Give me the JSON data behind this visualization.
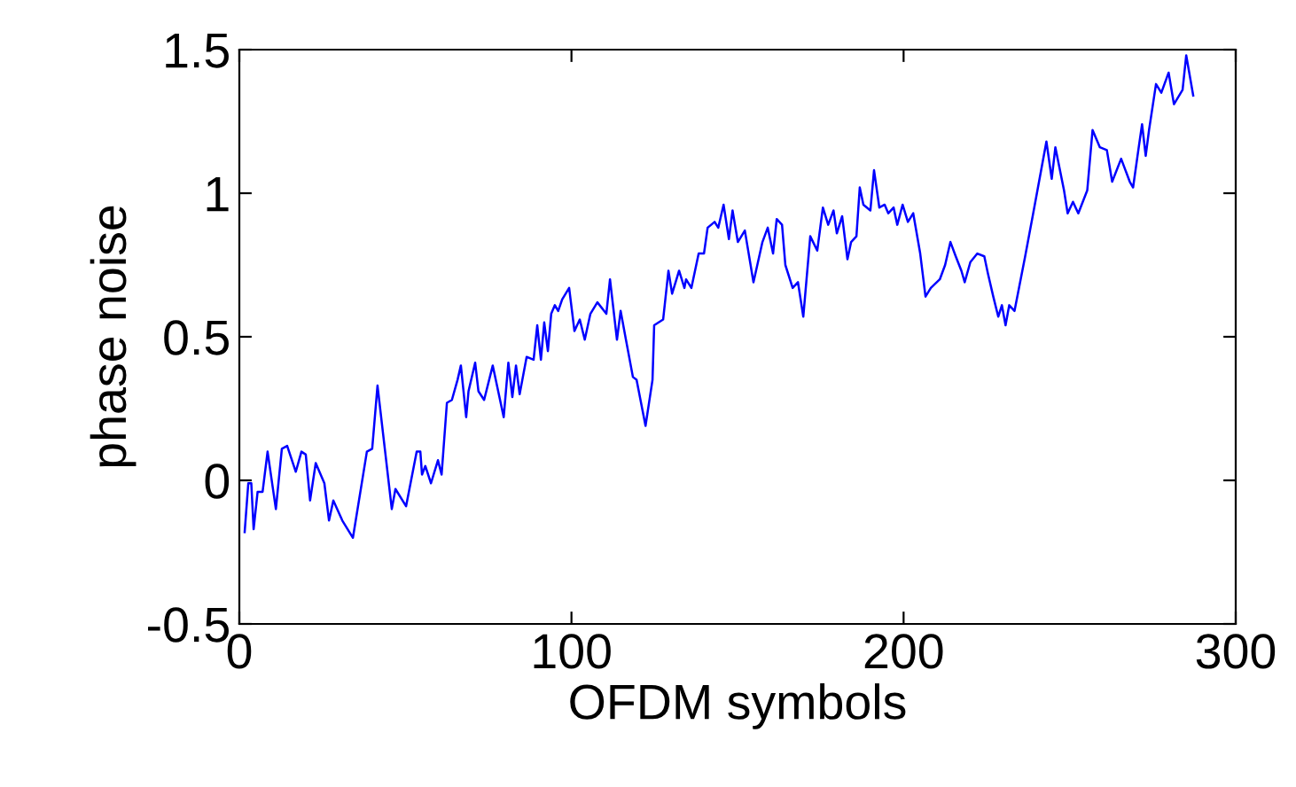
{
  "chart_data": {
    "type": "line",
    "xlabel": "OFDM symbols",
    "ylabel": "phase noise",
    "xlim": [
      0,
      300
    ],
    "xticks": [
      0,
      100,
      200,
      300
    ],
    "ylim": [
      -0.5,
      1.5
    ],
    "yticks": [
      -0.5,
      0,
      0.5,
      1,
      1.5
    ],
    "grid": false,
    "series": [
      {
        "color": "#0000ff",
        "x": [
          1.6,
          2.7,
          3.6,
          4.3,
          5.5,
          7,
          8.5,
          11,
          12.8,
          14.4,
          17,
          18.7,
          20,
          21.3,
          23,
          25.6,
          27,
          28.3,
          31,
          34.2,
          38.4,
          40,
          41.6,
          45.9,
          47,
          50.2,
          53.4,
          54.5,
          55,
          56,
          57.7,
          59.8,
          60.9,
          62.5,
          64,
          65.7,
          66.7,
          68.3,
          69,
          71,
          72,
          73.7,
          76.3,
          79.6,
          81,
          82.2,
          83.3,
          84.4,
          86.5,
          88.6,
          89.7,
          90.8,
          91.8,
          92.9,
          93.9,
          95,
          96,
          97.2,
          99.3,
          100.9,
          102.5,
          104,
          105.7,
          107.8,
          110.5,
          111.6,
          113.7,
          114.8,
          116.4,
          118.5,
          119.6,
          122.3,
          124.4,
          124.9,
          127.6,
          129.2,
          130.3,
          132.4,
          134,
          134.5,
          136.1,
          138.3,
          139.9,
          141,
          143.1,
          144.2,
          145.8,
          147.4,
          148.5,
          150.1,
          152.2,
          154.8,
          157.5,
          159.1,
          160.7,
          161.8,
          163.4,
          164.4,
          166.6,
          168.2,
          169.8,
          171.9,
          174,
          175.7,
          177.3,
          178.9,
          179.9,
          181.5,
          183.1,
          184.2,
          185.8,
          186.8,
          187.9,
          190,
          191.1,
          192.7,
          194.3,
          195.4,
          197,
          198.1,
          199.7,
          201.3,
          202.9,
          205,
          206.6,
          208.2,
          210.9,
          212.5,
          214.1,
          215.7,
          217.4,
          218.4,
          220.1,
          222.2,
          224.3,
          225.4,
          227,
          228.5,
          229.6,
          230.7,
          231.8,
          233.4,
          236.6,
          238.7,
          240.3,
          243,
          244.6,
          245.7,
          248.3,
          249.4,
          251,
          252.6,
          255.3,
          256.9,
          259.1,
          261.2,
          262.8,
          265.5,
          268.1,
          269.1,
          270.8,
          271.8,
          272.9,
          273.9,
          276,
          277.6,
          279.8,
          281.4,
          284,
          285.1,
          287.2
        ],
        "values": [
          -0.18,
          -0.01,
          -0.01,
          -0.17,
          -0.04,
          -0.04,
          0.1,
          -0.1,
          0.11,
          0.12,
          0.03,
          0.1,
          0.09,
          -0.07,
          0.06,
          -0.01,
          -0.14,
          -0.07,
          -0.14,
          -0.2,
          0.1,
          0.11,
          0.33,
          -0.1,
          -0.03,
          -0.09,
          0.1,
          0.1,
          0.02,
          0.05,
          -0.01,
          0.07,
          0.02,
          0.27,
          0.28,
          0.35,
          0.4,
          0.22,
          0.31,
          0.41,
          0.31,
          0.28,
          0.4,
          0.22,
          0.41,
          0.29,
          0.4,
          0.3,
          0.43,
          0.42,
          0.54,
          0.42,
          0.55,
          0.45,
          0.58,
          0.61,
          0.59,
          0.63,
          0.67,
          0.52,
          0.56,
          0.49,
          0.58,
          0.62,
          0.58,
          0.7,
          0.49,
          0.59,
          0.49,
          0.36,
          0.35,
          0.19,
          0.35,
          0.54,
          0.56,
          0.73,
          0.65,
          0.73,
          0.67,
          0.7,
          0.67,
          0.79,
          0.79,
          0.88,
          0.9,
          0.88,
          0.96,
          0.84,
          0.94,
          0.83,
          0.87,
          0.69,
          0.83,
          0.88,
          0.79,
          0.91,
          0.89,
          0.75,
          0.67,
          0.69,
          0.57,
          0.85,
          0.8,
          0.95,
          0.89,
          0.94,
          0.86,
          0.92,
          0.77,
          0.83,
          0.85,
          1.02,
          0.96,
          0.94,
          1.08,
          0.95,
          0.96,
          0.93,
          0.95,
          0.89,
          0.96,
          0.9,
          0.93,
          0.79,
          0.64,
          0.67,
          0.7,
          0.75,
          0.83,
          0.78,
          0.73,
          0.69,
          0.76,
          0.79,
          0.78,
          0.72,
          0.64,
          0.57,
          0.61,
          0.54,
          0.61,
          0.59,
          0.78,
          0.91,
          1.01,
          1.18,
          1.05,
          1.16,
          1.01,
          0.93,
          0.97,
          0.93,
          1.01,
          1.22,
          1.16,
          1.15,
          1.04,
          1.12,
          1.04,
          1.02,
          1.16,
          1.24,
          1.13,
          1.22,
          1.38,
          1.35,
          1.42,
          1.31,
          1.36,
          1.48,
          1.34
        ]
      }
    ]
  }
}
